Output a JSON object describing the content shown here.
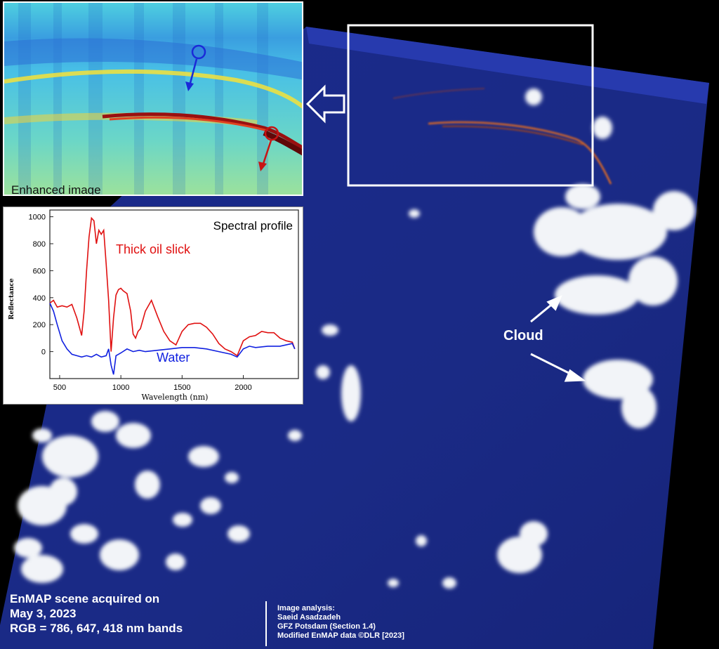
{
  "caption": {
    "line1": "EnMAP scene acquired on",
    "line2": "May 3, 2023",
    "line3": "RGB = 786, 647, 418 nm bands"
  },
  "credits": {
    "line1": "Image analysis:",
    "line2": "Saeid Asadzadeh",
    "line3": "GFZ Potsdam (Section 1.4)",
    "line4": "Modified EnMAP data ©DLR [2023]"
  },
  "enhanced_label": "Enhanced image",
  "cloud_label": "Cloud",
  "spectral": {
    "title": "Spectral profile",
    "ylabel": "Reflectance",
    "xlabel": "Wavelength (nm)",
    "oil_label": "Thick oil slick",
    "water_label": "Water",
    "yticks": [
      "1000",
      "800",
      "600",
      "400",
      "200",
      "0"
    ],
    "xticks": [
      "500",
      "1000",
      "1500",
      "2000"
    ]
  },
  "colors": {
    "ocean": "#1a2a8a",
    "oil": "#e01010",
    "water": "#1020e0",
    "enhanced_bg": "#40c8e0"
  },
  "chart_data": {
    "type": "line",
    "xlabel": "Wavelength (nm)",
    "ylabel": "Reflectance",
    "xlim": [
      420,
      2450
    ],
    "ylim": [
      -200,
      1050
    ],
    "series": [
      {
        "name": "Thick oil slick",
        "x": [
          420,
          450,
          480,
          520,
          560,
          600,
          640,
          680,
          700,
          720,
          740,
          760,
          780,
          800,
          820,
          840,
          860,
          880,
          900,
          920,
          940,
          960,
          980,
          1000,
          1020,
          1050,
          1080,
          1100,
          1120,
          1140,
          1160,
          1200,
          1250,
          1300,
          1350,
          1400,
          1450,
          1500,
          1550,
          1600,
          1650,
          1700,
          1750,
          1800,
          1850,
          1900,
          1950,
          2000,
          2050,
          2100,
          2150,
          2200,
          2250,
          2300,
          2350,
          2400,
          2420
        ],
        "y": [
          360,
          380,
          330,
          340,
          330,
          350,
          250,
          120,
          300,
          600,
          850,
          990,
          970,
          800,
          900,
          870,
          900,
          650,
          380,
          0,
          250,
          420,
          460,
          470,
          450,
          430,
          300,
          130,
          100,
          150,
          170,
          300,
          380,
          260,
          150,
          80,
          50,
          150,
          200,
          210,
          210,
          180,
          130,
          60,
          20,
          0,
          -30,
          80,
          110,
          120,
          150,
          140,
          140,
          100,
          80,
          70,
          20
        ]
      },
      {
        "name": "Water",
        "x": [
          420,
          450,
          480,
          520,
          560,
          600,
          640,
          680,
          720,
          760,
          800,
          840,
          880,
          900,
          920,
          940,
          960,
          980,
          1000,
          1050,
          1100,
          1150,
          1200,
          1300,
          1400,
          1500,
          1600,
          1700,
          1800,
          1900,
          1950,
          2000,
          2050,
          2100,
          2200,
          2300,
          2400,
          2420
        ],
        "y": [
          360,
          300,
          200,
          80,
          20,
          -20,
          -30,
          -40,
          -30,
          -40,
          -20,
          -40,
          -30,
          20,
          -100,
          -170,
          -30,
          -20,
          -10,
          20,
          0,
          10,
          0,
          10,
          20,
          30,
          30,
          20,
          0,
          -20,
          -40,
          20,
          40,
          30,
          40,
          40,
          60,
          20
        ]
      }
    ]
  }
}
